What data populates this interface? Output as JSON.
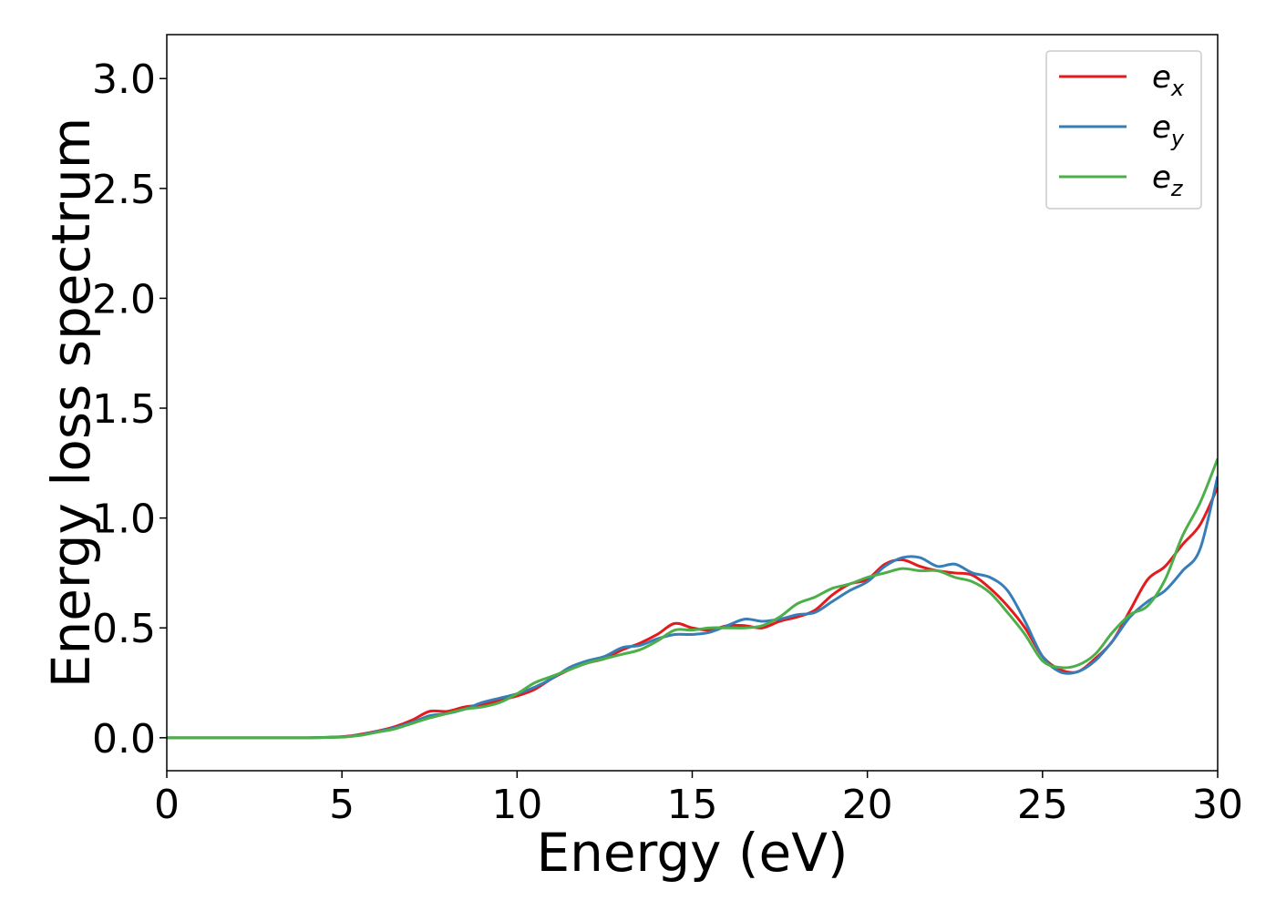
{
  "chart_data": {
    "type": "line",
    "xlabel": "Energy (eV)",
    "ylabel": "Energy loss spectrum",
    "xlim": [
      0,
      30
    ],
    "ylim": [
      -0.15,
      3.2
    ],
    "xticks": [
      0,
      5,
      10,
      15,
      20,
      25,
      30
    ],
    "xtick_labels": [
      "0",
      "5",
      "10",
      "15",
      "20",
      "25",
      "30"
    ],
    "yticks": [
      0.0,
      0.5,
      1.0,
      1.5,
      2.0,
      2.5,
      3.0
    ],
    "ytick_labels": [
      "0.0",
      "0.5",
      "1.0",
      "1.5",
      "2.0",
      "2.5",
      "3.0"
    ],
    "grid": false,
    "legend_position": "top-right",
    "series": [
      {
        "name": "e",
        "subscript": "x",
        "color": "#e41a1c",
        "x": [
          0,
          1,
          2,
          3,
          4,
          5,
          5.5,
          6,
          6.5,
          7,
          7.5,
          8,
          8.5,
          9,
          9.5,
          10,
          10.5,
          11,
          11.5,
          12,
          12.5,
          13,
          13.5,
          14,
          14.5,
          15,
          15.5,
          16,
          16.5,
          17,
          17.5,
          18,
          18.5,
          19,
          19.5,
          20,
          20.5,
          21,
          21.5,
          22,
          22.5,
          23,
          23.5,
          24,
          24.5,
          25,
          25.5,
          26,
          26.5,
          27,
          27.5,
          28,
          28.5,
          29,
          29.5,
          30
        ],
        "y": [
          0,
          0,
          0,
          0,
          0,
          0.005,
          0.015,
          0.03,
          0.05,
          0.08,
          0.12,
          0.12,
          0.14,
          0.15,
          0.17,
          0.19,
          0.22,
          0.27,
          0.31,
          0.34,
          0.36,
          0.4,
          0.43,
          0.47,
          0.52,
          0.5,
          0.49,
          0.51,
          0.51,
          0.5,
          0.53,
          0.55,
          0.58,
          0.65,
          0.7,
          0.72,
          0.79,
          0.81,
          0.78,
          0.76,
          0.75,
          0.74,
          0.68,
          0.6,
          0.5,
          0.37,
          0.31,
          0.3,
          0.36,
          0.44,
          0.58,
          0.72,
          0.78,
          0.88,
          0.97,
          1.14
        ]
      },
      {
        "name": "e",
        "subscript": "y",
        "color": "#377eb8",
        "x": [
          0,
          1,
          2,
          3,
          4,
          5,
          5.5,
          6,
          6.5,
          7,
          7.5,
          8,
          8.5,
          9,
          9.5,
          10,
          10.5,
          11,
          11.5,
          12,
          12.5,
          13,
          13.5,
          14,
          14.5,
          15,
          15.5,
          16,
          16.5,
          17,
          17.5,
          18,
          18.5,
          19,
          19.5,
          20,
          20.5,
          21,
          21.5,
          22,
          22.5,
          23,
          23.5,
          24,
          24.5,
          25,
          25.5,
          26,
          26.5,
          27,
          27.5,
          28,
          28.5,
          29,
          29.5,
          30
        ],
        "y": [
          0,
          0,
          0,
          0,
          0,
          0.004,
          0.012,
          0.028,
          0.045,
          0.07,
          0.1,
          0.11,
          0.13,
          0.16,
          0.18,
          0.2,
          0.23,
          0.27,
          0.32,
          0.35,
          0.37,
          0.41,
          0.42,
          0.45,
          0.47,
          0.47,
          0.48,
          0.51,
          0.54,
          0.53,
          0.54,
          0.56,
          0.57,
          0.62,
          0.67,
          0.71,
          0.78,
          0.82,
          0.82,
          0.78,
          0.79,
          0.75,
          0.73,
          0.67,
          0.53,
          0.37,
          0.3,
          0.3,
          0.35,
          0.44,
          0.55,
          0.62,
          0.67,
          0.76,
          0.86,
          1.19
        ]
      },
      {
        "name": "e",
        "subscript": "z",
        "color": "#4daf4a",
        "x": [
          0,
          1,
          2,
          3,
          4,
          5,
          5.5,
          6,
          6.5,
          7,
          7.5,
          8,
          8.5,
          9,
          9.5,
          10,
          10.5,
          11,
          11.5,
          12,
          12.5,
          13,
          13.5,
          14,
          14.5,
          15,
          15.5,
          16,
          16.5,
          17,
          17.5,
          18,
          18.5,
          19,
          19.5,
          20,
          20.5,
          21,
          21.5,
          22,
          22.5,
          23,
          23.5,
          24,
          24.5,
          25,
          25.5,
          26,
          26.5,
          27,
          27.5,
          28,
          28.5,
          29,
          29.5,
          30
        ],
        "y": [
          0,
          0,
          0,
          0,
          0,
          0.003,
          0.01,
          0.025,
          0.04,
          0.065,
          0.09,
          0.11,
          0.13,
          0.14,
          0.16,
          0.2,
          0.25,
          0.28,
          0.31,
          0.34,
          0.36,
          0.38,
          0.4,
          0.44,
          0.49,
          0.49,
          0.5,
          0.5,
          0.5,
          0.51,
          0.55,
          0.61,
          0.64,
          0.68,
          0.7,
          0.73,
          0.75,
          0.77,
          0.76,
          0.76,
          0.73,
          0.71,
          0.66,
          0.57,
          0.47,
          0.35,
          0.32,
          0.33,
          0.38,
          0.48,
          0.56,
          0.6,
          0.72,
          0.92,
          1.07,
          1.27
        ]
      }
    ]
  }
}
